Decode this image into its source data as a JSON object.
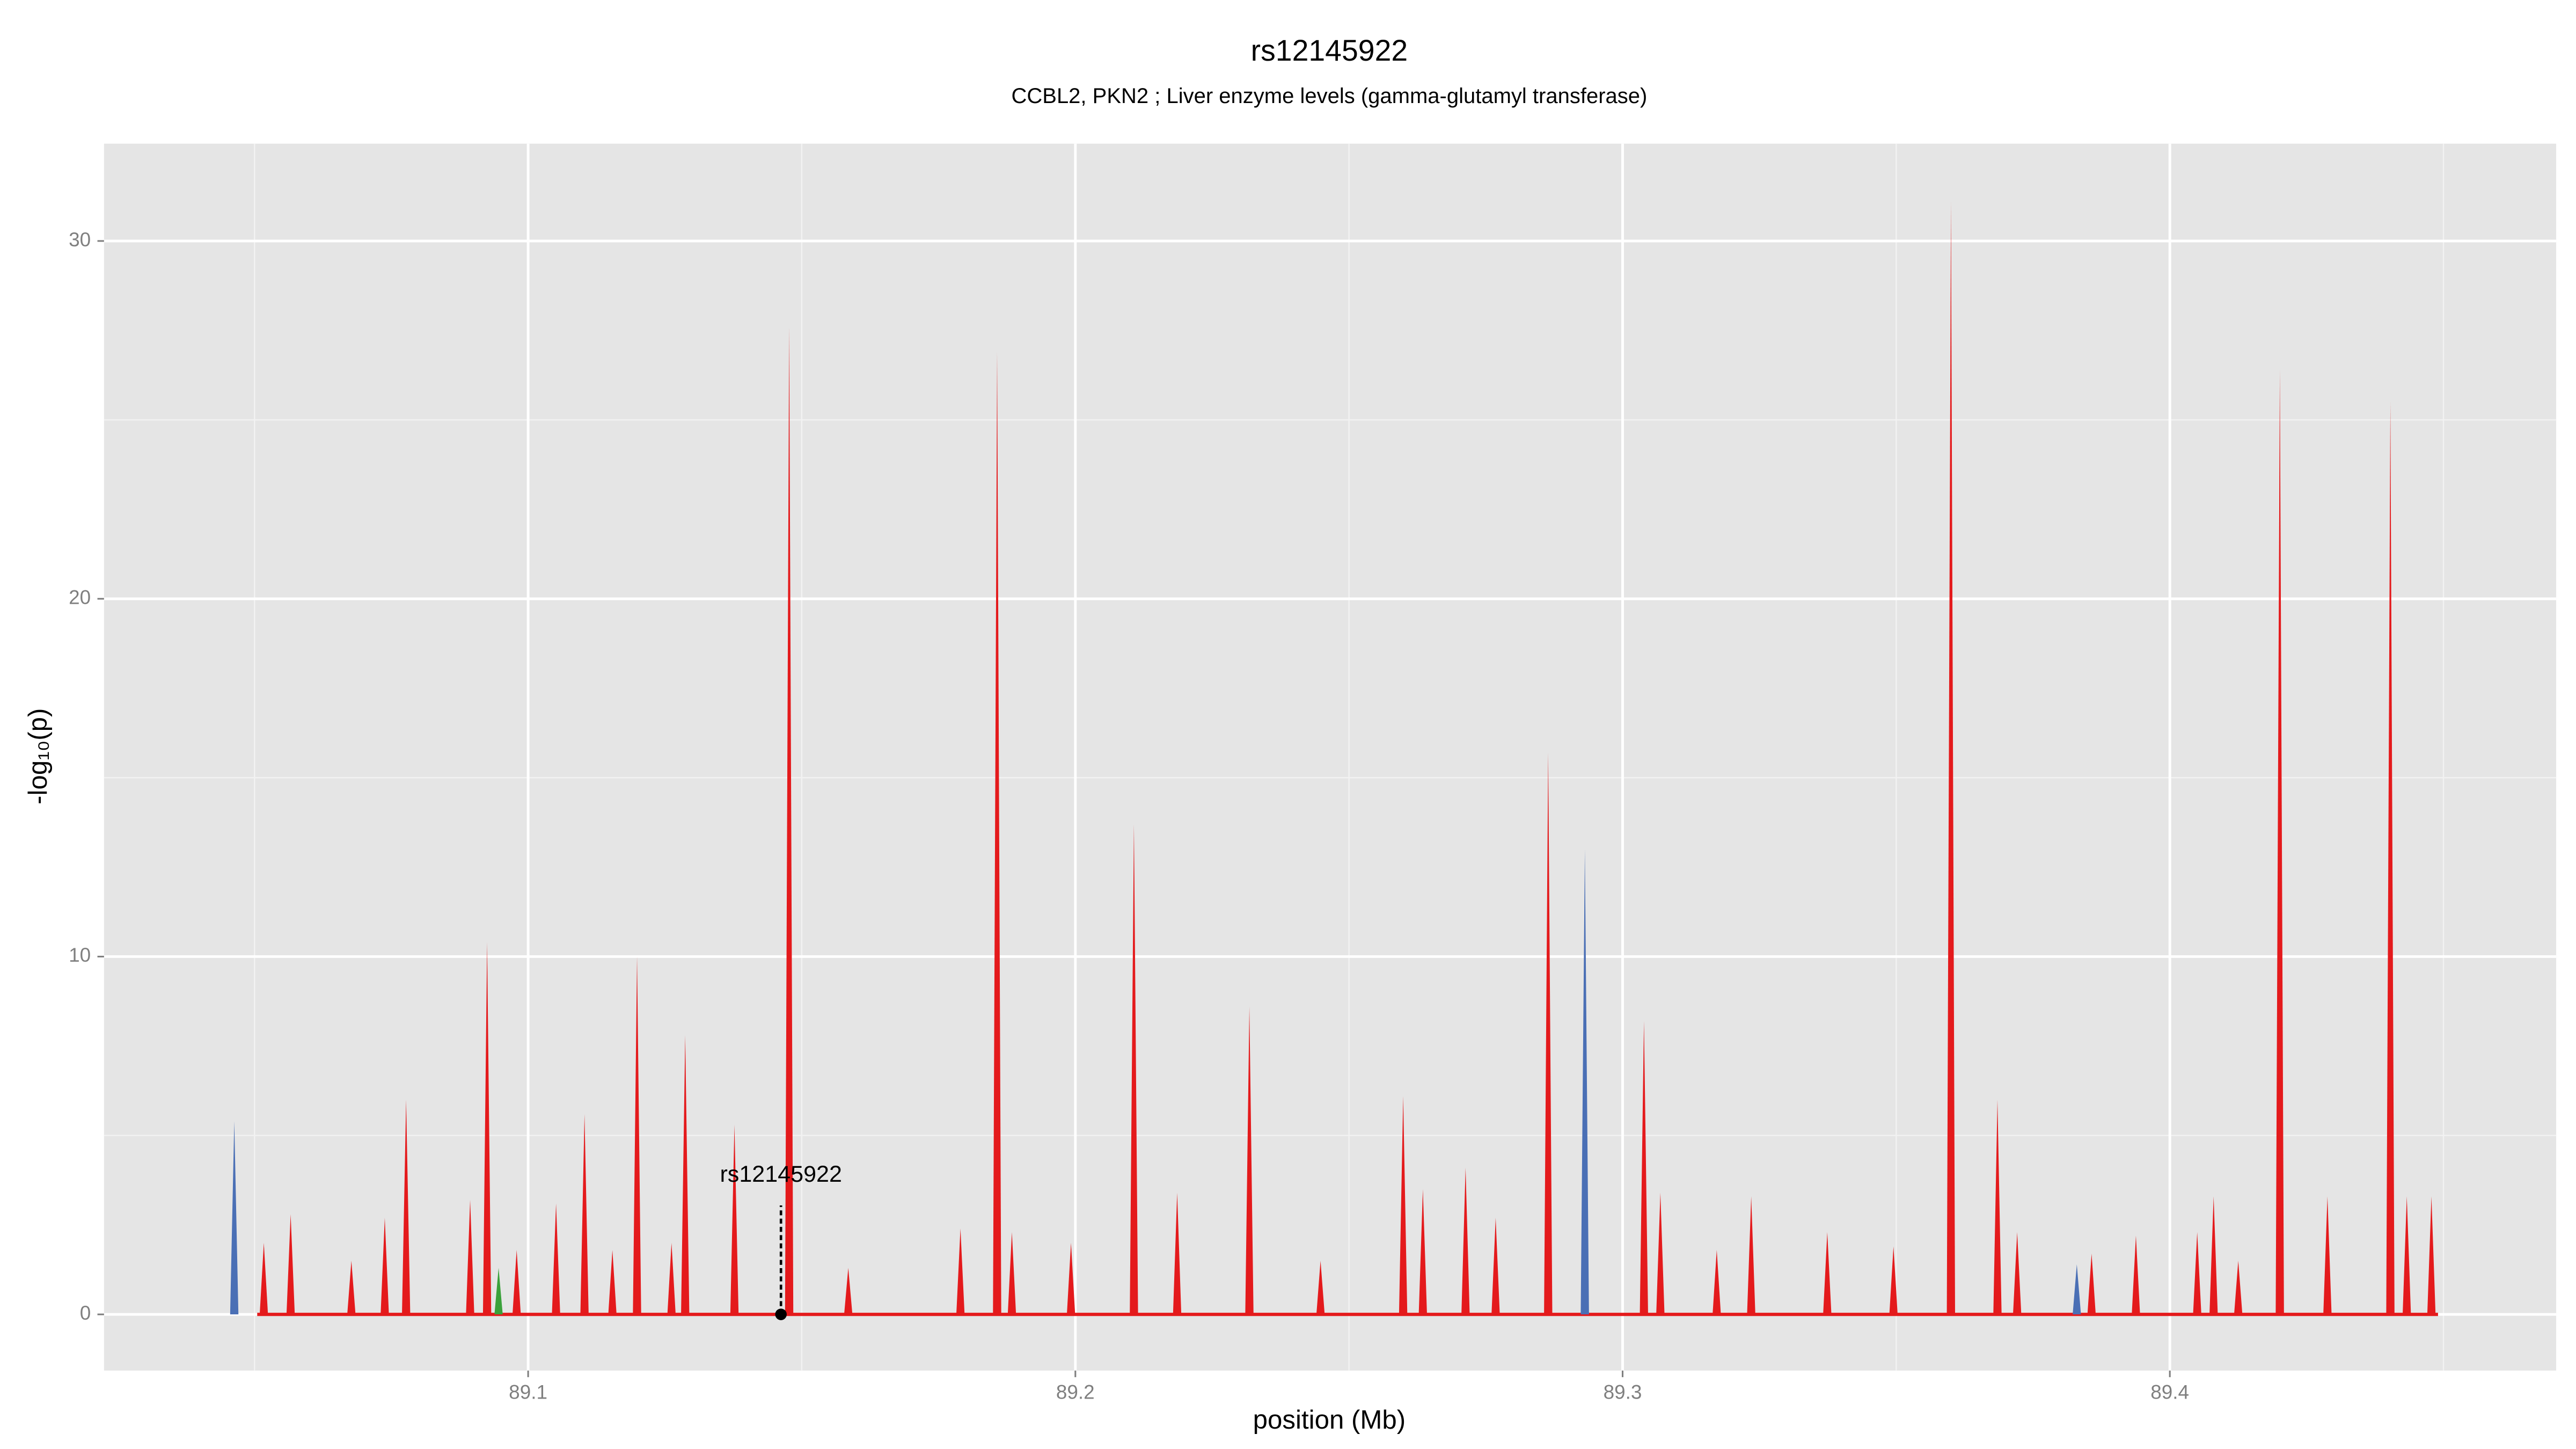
{
  "chart_data": {
    "type": "spike",
    "title": "rs12145922",
    "subtitle": "CCBL2, PKN2 ; Liver enzyme levels (gamma-glutamyl transferase)",
    "x_label": "position (Mb)",
    "y_label": "-log₁₀(p)",
    "xlim": [
      89.0225,
      89.4706
    ],
    "ylim": [
      -1.57,
      32.72
    ],
    "xticks": [
      89.1,
      89.2,
      89.3,
      89.4
    ],
    "yticks": [
      0,
      10,
      20,
      30
    ],
    "x_minor_grid": [
      89.05,
      89.15,
      89.25,
      89.35,
      89.45
    ],
    "y_minor_grid": [
      5,
      15,
      25
    ],
    "grid": true,
    "series": [
      {
        "name": "red",
        "color": "#e41a1c",
        "x": [
          89.0517,
          89.0566,
          89.0677,
          89.0738,
          89.0777,
          89.0894,
          89.0925,
          89.0979,
          89.1051,
          89.1103,
          89.1154,
          89.1199,
          89.1262,
          89.1287,
          89.1377,
          89.1477,
          89.1585,
          89.179,
          89.1857,
          89.1884,
          89.1992,
          89.2107,
          89.2186,
          89.2318,
          89.2448,
          89.2599,
          89.2635,
          89.2713,
          89.2768,
          89.2864,
          89.3039,
          89.3069,
          89.3172,
          89.3235,
          89.3374,
          89.3495,
          89.36,
          89.3685,
          89.3721,
          89.3857,
          89.3938,
          89.405,
          89.408,
          89.4125,
          89.4201,
          89.4288,
          89.4403,
          89.4433,
          89.4478
        ],
        "values": [
          2.0,
          2.8,
          1.5,
          2.7,
          6.0,
          3.2,
          10.4,
          1.8,
          3.1,
          5.6,
          1.8,
          10.0,
          2.0,
          7.8,
          5.3,
          27.6,
          1.3,
          2.4,
          26.9,
          2.3,
          2.0,
          13.7,
          3.4,
          8.6,
          1.5,
          6.1,
          3.5,
          4.1,
          2.7,
          15.7,
          8.2,
          3.4,
          1.8,
          3.3,
          2.3,
          1.9,
          31.1,
          6.0,
          2.3,
          1.7,
          2.2,
          2.3,
          3.3,
          1.5,
          26.4,
          3.3,
          25.5,
          3.3,
          3.3
        ]
      },
      {
        "name": "blue",
        "color": "#4a6fb5",
        "x": [
          89.0463,
          89.2931,
          89.383
        ],
        "values": [
          5.4,
          13.0,
          1.4
        ]
      },
      {
        "name": "green",
        "color": "#3aa13a",
        "x": [
          89.0946
        ],
        "values": [
          1.3
        ]
      }
    ],
    "annotation": {
      "label": "rs12145922",
      "x": 89.1462,
      "y": 0
    }
  }
}
